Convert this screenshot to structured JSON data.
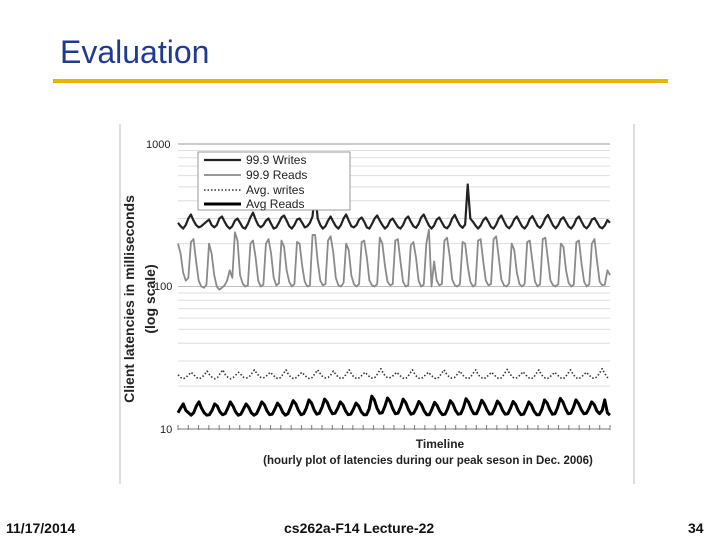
{
  "slide": {
    "title": "Evaluation",
    "footer_date": "11/17/2014",
    "footer_course": "cs262a-F14 Lecture-22",
    "footer_page": "34"
  },
  "colors": {
    "title": "#1f3a93",
    "rule": "#e8b400",
    "writes999": "#222222",
    "reads999": "#8a8a8a",
    "avg_writes": "#333333",
    "avg_reads": "#000000"
  },
  "chart_data": {
    "type": "line",
    "title": "",
    "ylabel": "Client latencies in milliseconds (log scale)",
    "ylabel_lines": [
      "Client latencies in milliseconds",
      "(log scale)"
    ],
    "xlabel": "Timeline",
    "xlabel_sub": "(hourly plot of latencies during our peak seson in Dec. 2006)",
    "yscale": "log",
    "ylim": [
      10,
      1000
    ],
    "yticks": [
      {
        "value": 1000,
        "label": "1000"
      },
      {
        "value": 100,
        "label": "100"
      },
      {
        "value": 10,
        "label": "10"
      }
    ],
    "x_range": [
      0,
      168
    ],
    "grid": true,
    "legend_position": "top-left",
    "series": [
      {
        "name": "99.9 Writes",
        "style": "solid-medium",
        "values": [
          280,
          265,
          255,
          270,
          300,
          320,
          290,
          270,
          260,
          265,
          275,
          285,
          295,
          270,
          260,
          270,
          300,
          310,
          285,
          265,
          255,
          265,
          290,
          300,
          280,
          260,
          255,
          275,
          305,
          330,
          295,
          270,
          260,
          270,
          290,
          300,
          275,
          255,
          260,
          280,
          305,
          315,
          290,
          265,
          255,
          270,
          295,
          300,
          280,
          260,
          265,
          280,
          310,
          470,
          300,
          270,
          255,
          265,
          290,
          310,
          285,
          265,
          255,
          270,
          300,
          320,
          290,
          265,
          260,
          270,
          295,
          305,
          285,
          260,
          255,
          275,
          300,
          315,
          290,
          270,
          255,
          265,
          290,
          300,
          280,
          262,
          255,
          270,
          298,
          310,
          285,
          265,
          258,
          275,
          305,
          320,
          292,
          268,
          255,
          268,
          295,
          305,
          282,
          262,
          256,
          270,
          300,
          318,
          290,
          268,
          258,
          272,
          520,
          300,
          285,
          268,
          255,
          268,
          292,
          305,
          284,
          262,
          255,
          272,
          300,
          315,
          288,
          265,
          256,
          270,
          296,
          310,
          286,
          264,
          255,
          270,
          298,
          312,
          288,
          266,
          258,
          274,
          302,
          318,
          292,
          268,
          256,
          270,
          296,
          306,
          284,
          264,
          255,
          270,
          298,
          310,
          286,
          264,
          256,
          270,
          295,
          302,
          282,
          262,
          256,
          268,
          292,
          280
        ]
      },
      {
        "name": "99.9 Reads",
        "style": "solid-gray",
        "values": [
          200,
          170,
          125,
          110,
          115,
          205,
          215,
          150,
          110,
          100,
          98,
          103,
          200,
          170,
          120,
          100,
          95,
          98,
          102,
          110,
          130,
          115,
          240,
          210,
          120,
          105,
          100,
          102,
          200,
          210,
          160,
          110,
          100,
          103,
          200,
          215,
          170,
          115,
          102,
          105,
          210,
          190,
          130,
          108,
          100,
          104,
          205,
          200,
          140,
          108,
          100,
          102,
          230,
          230,
          150,
          110,
          102,
          104,
          210,
          225,
          175,
          115,
          102,
          100,
          106,
          200,
          180,
          120,
          104,
          100,
          104,
          205,
          210,
          160,
          110,
          102,
          100,
          104,
          220,
          200,
          140,
          108,
          102,
          104,
          210,
          215,
          150,
          108,
          100,
          102,
          195,
          205,
          160,
          110,
          100,
          103,
          200,
          250,
          100,
          150,
          110,
          102,
          104,
          210,
          220,
          165,
          112,
          102,
          100,
          104,
          205,
          200,
          140,
          108,
          100,
          103,
          210,
          215,
          150,
          110,
          102,
          104,
          215,
          225,
          160,
          112,
          102,
          100,
          105,
          200,
          180,
          125,
          104,
          100,
          104,
          205,
          210,
          150,
          108,
          100,
          104,
          215,
          220,
          155,
          110,
          102,
          100,
          104,
          200,
          190,
          130,
          106,
          100,
          103,
          205,
          210,
          145,
          108,
          100,
          104,
          200,
          215,
          150,
          108,
          102,
          103,
          130,
          120
        ]
      },
      {
        "name": "Avg. writes",
        "style": "dotted",
        "values": [
          24,
          23,
          22.5,
          23,
          24,
          25,
          24,
          23,
          22.5,
          23,
          24,
          25.5,
          24,
          23,
          22.5,
          23,
          24.5,
          26,
          24,
          23,
          22.5,
          23,
          24,
          25,
          24,
          23,
          22.8,
          23.2,
          24.5,
          26,
          24.5,
          23.2,
          22.8,
          23,
          24,
          25,
          24,
          23,
          22.5,
          23,
          24.5,
          26,
          24,
          23,
          22.5,
          23,
          24,
          25,
          24,
          23,
          22.5,
          23,
          24.5,
          26,
          24.5,
          23.2,
          22.8,
          23,
          24,
          25.5,
          24,
          23,
          22.5,
          23,
          24.5,
          26,
          24,
          23,
          22.5,
          23,
          24,
          25,
          24,
          23,
          22.6,
          23.2,
          24.8,
          26.5,
          24.5,
          23.2,
          22.8,
          23.1,
          24,
          25,
          24,
          23,
          22.5,
          23,
          24.5,
          26,
          24,
          23,
          22.5,
          23,
          24,
          25,
          24,
          23,
          22.5,
          23,
          24.5,
          26,
          24.3,
          23.1,
          22.7,
          23,
          24.2,
          25.5,
          24,
          23,
          22.5,
          23,
          24.5,
          26,
          24,
          23,
          22.5,
          23,
          24,
          25,
          24,
          23,
          22.5,
          23,
          24.6,
          26.2,
          24.4,
          23.1,
          22.7,
          23,
          24.1,
          25.2,
          24,
          23,
          22.5,
          23,
          24.5,
          26,
          24,
          23,
          22.5,
          23,
          24,
          25,
          24,
          23,
          22.5,
          23,
          24.5,
          26,
          24.2,
          23,
          22.5,
          23,
          24,
          25,
          24,
          23,
          22.6,
          23.2,
          24.6,
          26.5,
          24.5,
          23,
          23
        ]
      },
      {
        "name": "Avg Reads",
        "style": "solid-thick",
        "values": [
          13,
          14,
          15,
          13.5,
          13,
          12.5,
          13,
          14.5,
          15.5,
          14,
          13,
          12.5,
          12.6,
          13.5,
          15,
          14.5,
          13.2,
          12.6,
          12.8,
          14,
          15.5,
          14.5,
          13.2,
          12.5,
          12.7,
          13.8,
          15,
          14.2,
          13,
          12.5,
          12.8,
          14,
          15.5,
          14.8,
          13.4,
          12.6,
          12.7,
          13.8,
          15.2,
          14.4,
          13.1,
          12.5,
          12.8,
          14.2,
          15.8,
          15,
          13.5,
          12.6,
          12.8,
          14,
          16,
          15.2,
          13.6,
          12.7,
          12.9,
          14.2,
          16.2,
          15.4,
          13.8,
          12.8,
          12.9,
          14,
          15.5,
          14.8,
          13.4,
          12.6,
          12.7,
          13.8,
          15.2,
          14.5,
          13.2,
          12.6,
          12.6,
          13.8,
          17,
          16,
          14,
          12.9,
          13,
          14.4,
          16.5,
          15.6,
          13.9,
          12.8,
          12.9,
          14.2,
          16.2,
          15.3,
          13.7,
          12.7,
          12.9,
          14,
          15.6,
          14.8,
          13.4,
          12.6,
          12.6,
          13.8,
          15.4,
          14.6,
          13.3,
          12.6,
          12.7,
          13.9,
          15.8,
          15,
          13.5,
          12.7,
          12.8,
          14.1,
          16.3,
          15.4,
          13.8,
          12.8,
          12.8,
          14.1,
          15.9,
          15,
          13.6,
          12.7,
          12.8,
          14,
          15.7,
          14.9,
          13.5,
          12.7,
          12.8,
          14,
          15.6,
          14.8,
          13.4,
          12.6,
          12.7,
          13.9,
          15.5,
          14.7,
          13.3,
          12.6,
          12.6,
          13.8,
          16,
          15.2,
          13.7,
          12.7,
          12.8,
          14.2,
          16.4,
          15.5,
          13.9,
          12.8,
          12.9,
          14.1,
          16,
          15.1,
          13.7,
          12.8,
          12.9,
          14,
          15.5,
          14.8,
          13.4,
          12.8,
          13.5,
          16,
          13,
          12.5
        ]
      }
    ]
  }
}
